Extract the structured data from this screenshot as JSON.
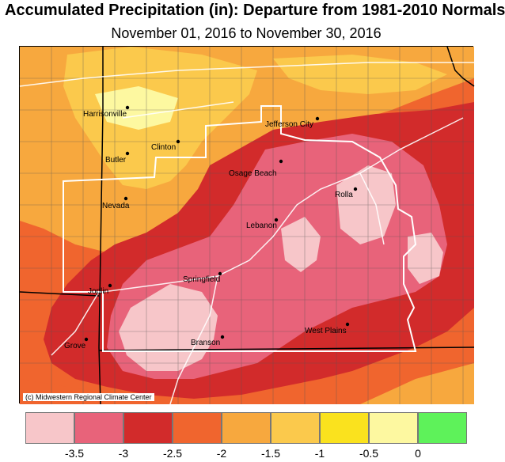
{
  "title": "Accumulated Precipitation (in): Departure from 1981-2010 Normals",
  "subtitle": "November 01, 2016 to November 30, 2016",
  "credit": "(c) Midwestern Regional Climate Center",
  "legend": {
    "colors": [
      "#f7c6c9",
      "#e8637a",
      "#d22b2b",
      "#f0652e",
      "#f7a83e",
      "#fbc94c",
      "#fae21e",
      "#fdf8a0",
      "#5ef25a"
    ],
    "labels": [
      "-3.5",
      "-3",
      "-2.5",
      "-2",
      "-1.5",
      "-1",
      "-0.5",
      "0"
    ]
  },
  "cities": [
    {
      "name": "Harrisonville"
    },
    {
      "name": "Clinton"
    },
    {
      "name": "Butler"
    },
    {
      "name": "Nevada"
    },
    {
      "name": "Jefferson City"
    },
    {
      "name": "Osage Beach"
    },
    {
      "name": "Rolla"
    },
    {
      "name": "Lebanon"
    },
    {
      "name": "Springfield"
    },
    {
      "name": "Joplin"
    },
    {
      "name": "Branson"
    },
    {
      "name": "West Plains"
    },
    {
      "name": "Grove"
    }
  ]
}
